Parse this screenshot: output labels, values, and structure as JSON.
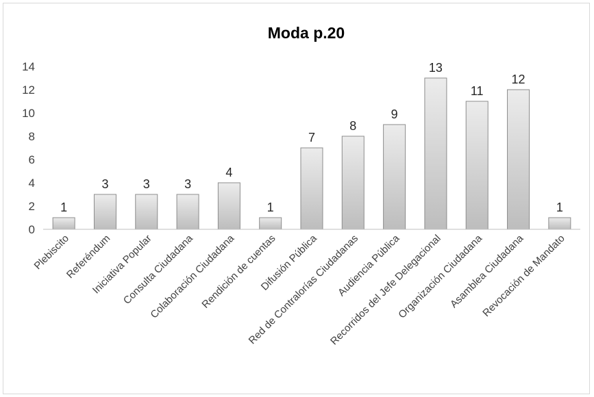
{
  "chart_data": {
    "type": "bar",
    "title": "Moda p.20",
    "xlabel": "",
    "ylabel": "",
    "ylim": [
      0,
      14
    ],
    "yticks": [
      0,
      2,
      4,
      6,
      8,
      10,
      12,
      14
    ],
    "grid": false,
    "legend": "none",
    "bar_color": "#d0d0d0",
    "bar_edge_color": "#8c8c8c",
    "categories": [
      "Plebiscito",
      "Referéndum",
      "Iniciativa Popular",
      "Consulta Ciudadana",
      "Colaboración Ciudadana",
      "Rendición de cuentas",
      "Difusión Pública",
      "Red de Contralorías Ciudadanas",
      "Audiencia Pública",
      "Recorridos del Jefe Delegacional",
      "Organización Ciudadana",
      "Asamblea Ciudadana",
      "Revocación de Mandato"
    ],
    "values": [
      1,
      3,
      3,
      3,
      4,
      1,
      7,
      8,
      9,
      13,
      11,
      12,
      1
    ]
  }
}
